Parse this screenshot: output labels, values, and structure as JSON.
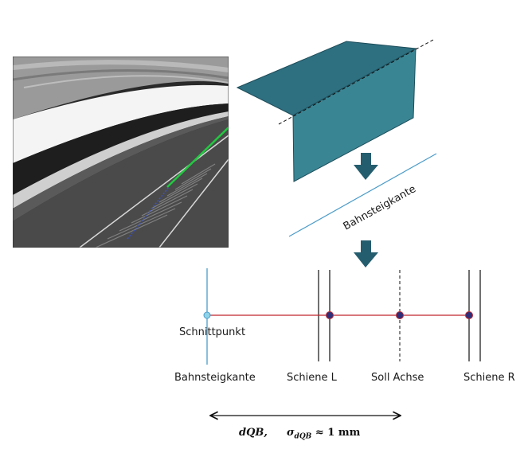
{
  "labels": {
    "platform_edge_diag": "Bahnsteigkante",
    "intersection_point": "Schnittpunkt",
    "platform_edge": "Bahnsteigkante",
    "rail_left": "Schiene L",
    "target_axis": "Soll Achse",
    "rail_right": "Schiene R"
  },
  "formula": {
    "distance_symbol": "dQB,",
    "sigma": "σ",
    "sigma_sub": "dQB",
    "approx": "≈",
    "value": "1 mm"
  },
  "colors": {
    "box_fill": "#2e6f80",
    "box_side": "#3a8594",
    "arrow": "#245d6e",
    "edge_line": "#4a9bc9",
    "connect_line": "#c0262c",
    "point": "#2d2f7a"
  }
}
